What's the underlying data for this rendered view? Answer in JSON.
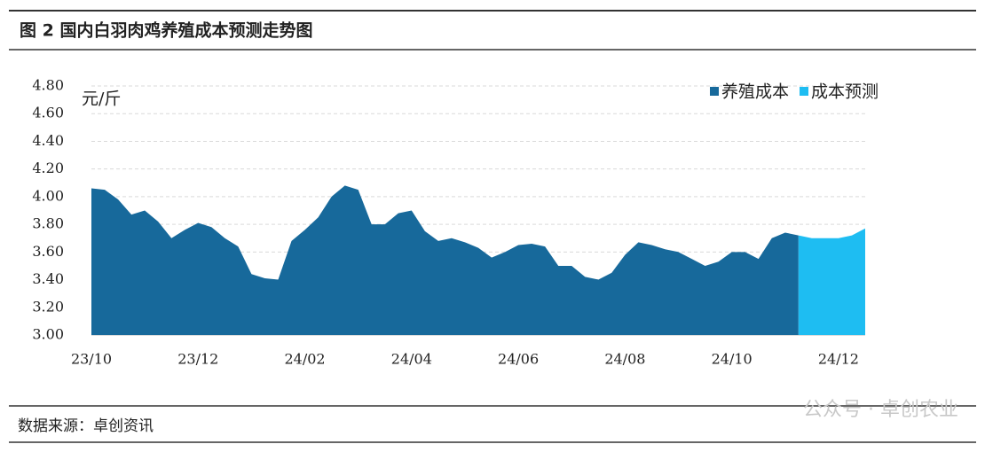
{
  "title": "图 2 国内白羽肉鸡养殖成本预测走势图",
  "source": "数据来源：卓创资讯",
  "watermark": "公众号 · 卓创农业",
  "chart_data": {
    "type": "area",
    "y_label": "元/斤",
    "categories": [
      "23/10",
      null,
      null,
      null,
      null,
      null,
      null,
      null,
      "23/12",
      null,
      null,
      null,
      null,
      null,
      null,
      null,
      "24/02",
      null,
      null,
      null,
      null,
      null,
      null,
      null,
      "24/04",
      null,
      null,
      null,
      null,
      null,
      null,
      null,
      "24/06",
      null,
      null,
      null,
      null,
      null,
      null,
      null,
      "24/08",
      null,
      null,
      null,
      null,
      null,
      null,
      null,
      "24/10",
      null,
      null,
      null,
      null,
      null,
      null,
      null,
      "24/12",
      null,
      null
    ],
    "series": [
      {
        "name": "养殖成本",
        "color": "#17699b",
        "values": [
          4.06,
          4.05,
          3.98,
          3.87,
          3.9,
          3.82,
          3.7,
          3.76,
          3.81,
          3.78,
          3.7,
          3.64,
          3.44,
          3.41,
          3.4,
          3.68,
          3.76,
          3.85,
          4.0,
          4.08,
          4.05,
          3.8,
          3.8,
          3.88,
          3.9,
          3.75,
          3.68,
          3.7,
          3.67,
          3.63,
          3.56,
          3.6,
          3.65,
          3.66,
          3.64,
          3.5,
          3.5,
          3.42,
          3.4,
          3.45,
          3.58,
          3.67,
          3.65,
          3.62,
          3.6,
          3.55,
          3.5,
          3.53,
          3.6,
          3.6,
          3.55,
          3.7,
          3.74,
          3.72,
          null,
          null,
          null,
          null,
          null
        ]
      },
      {
        "name": "成本预测",
        "color": "#1ebdf2",
        "values": [
          null,
          null,
          null,
          null,
          null,
          null,
          null,
          null,
          null,
          null,
          null,
          null,
          null,
          null,
          null,
          null,
          null,
          null,
          null,
          null,
          null,
          null,
          null,
          null,
          null,
          null,
          null,
          null,
          null,
          null,
          null,
          null,
          null,
          null,
          null,
          null,
          null,
          null,
          null,
          null,
          null,
          null,
          null,
          null,
          null,
          null,
          null,
          null,
          null,
          null,
          null,
          null,
          null,
          3.72,
          3.7,
          3.7,
          3.7,
          3.72,
          3.77
        ]
      }
    ],
    "ylim": [
      3,
      4.8
    ],
    "yticks": [
      {
        "value": 3,
        "label": "3.00"
      },
      {
        "value": 3.2,
        "label": "3.20"
      },
      {
        "value": 3.4,
        "label": "3.40"
      },
      {
        "value": 3.6,
        "label": "3.60"
      },
      {
        "value": 3.8,
        "label": "3.80"
      },
      {
        "value": 4,
        "label": "4.00"
      },
      {
        "value": 4.2,
        "label": "4.20"
      },
      {
        "value": 4.4,
        "label": "4.40"
      },
      {
        "value": 4.6,
        "label": "4.60"
      },
      {
        "value": 4.8,
        "label": "4.80"
      }
    ],
    "grid": true,
    "legend": "top-right"
  }
}
